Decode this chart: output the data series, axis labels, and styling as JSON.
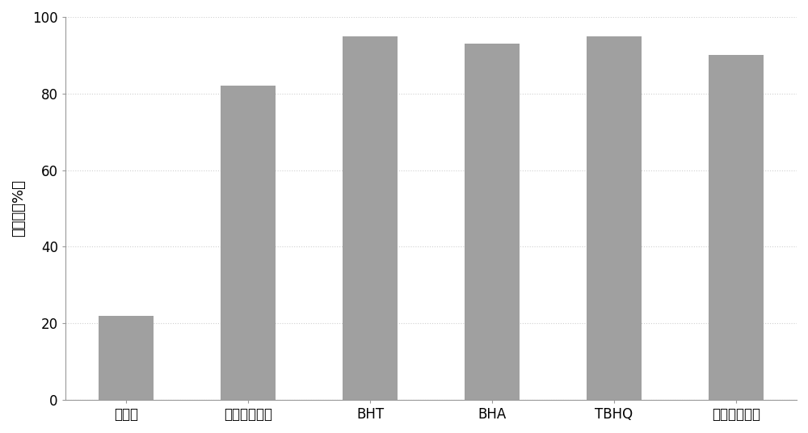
{
  "categories": [
    "茶多酚",
    "脂溶性茶多酚",
    "BHT",
    "BHA",
    "TBHQ",
    "迷迭香提取物"
  ],
  "values": [
    22,
    82,
    95,
    93,
    95,
    90
  ],
  "bar_color": "#a0a0a0",
  "bar_edgecolor": "none",
  "ylabel": "透光率（%）",
  "ylim": [
    0,
    100
  ],
  "yticks": [
    0,
    20,
    40,
    60,
    80,
    100
  ],
  "background_color": "#ffffff",
  "grid_color": "#d0d0d0",
  "ylabel_fontsize": 13,
  "tick_fontsize": 12,
  "bar_width": 0.45,
  "figsize": [
    10.0,
    5.36
  ],
  "dpi": 100
}
